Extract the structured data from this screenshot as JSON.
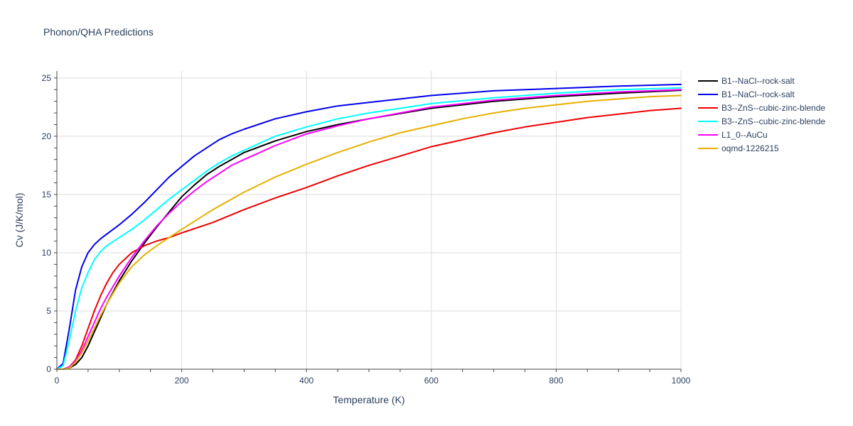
{
  "chart_data": {
    "type": "line",
    "title": "Phonon/QHA Predictions",
    "xlabel": "Temperature (K)",
    "ylabel": "Cv (J/K/mol)",
    "xlim": [
      0,
      1000
    ],
    "ylim": [
      0,
      25.6
    ],
    "xticks": [
      0,
      200,
      400,
      600,
      800,
      1000
    ],
    "yticks": [
      0,
      5,
      10,
      15,
      20,
      25
    ],
    "grid": true,
    "legend_position": "right",
    "series": [
      {
        "name": "B1--NaCl--rock-salt",
        "color": "#000000",
        "points": [
          [
            0,
            0
          ],
          [
            10,
            0
          ],
          [
            20,
            0.1
          ],
          [
            30,
            0.4
          ],
          [
            40,
            1.0
          ],
          [
            50,
            2.0
          ],
          [
            60,
            3.2
          ],
          [
            70,
            4.4
          ],
          [
            80,
            5.6
          ],
          [
            90,
            6.6
          ],
          [
            100,
            7.6
          ],
          [
            120,
            9.3
          ],
          [
            140,
            10.8
          ],
          [
            160,
            12.2
          ],
          [
            180,
            13.5
          ],
          [
            200,
            14.8
          ],
          [
            220,
            15.8
          ],
          [
            240,
            16.7
          ],
          [
            260,
            17.4
          ],
          [
            280,
            18.0
          ],
          [
            300,
            18.6
          ],
          [
            350,
            19.6
          ],
          [
            400,
            20.4
          ],
          [
            450,
            21.0
          ],
          [
            500,
            21.5
          ],
          [
            600,
            22.4
          ],
          [
            700,
            23.0
          ],
          [
            800,
            23.4
          ],
          [
            900,
            23.7
          ],
          [
            1000,
            23.95
          ]
        ]
      },
      {
        "name": "B1--NaCl--rock-salt",
        "color": "#0000ee",
        "points": [
          [
            0,
            0
          ],
          [
            10,
            0.5
          ],
          [
            20,
            3.5
          ],
          [
            30,
            6.8
          ],
          [
            40,
            8.8
          ],
          [
            50,
            10.0
          ],
          [
            60,
            10.7
          ],
          [
            70,
            11.2
          ],
          [
            80,
            11.6
          ],
          [
            100,
            12.4
          ],
          [
            120,
            13.3
          ],
          [
            140,
            14.3
          ],
          [
            160,
            15.4
          ],
          [
            180,
            16.5
          ],
          [
            200,
            17.4
          ],
          [
            220,
            18.3
          ],
          [
            240,
            19.0
          ],
          [
            260,
            19.7
          ],
          [
            280,
            20.2
          ],
          [
            300,
            20.6
          ],
          [
            350,
            21.5
          ],
          [
            400,
            22.1
          ],
          [
            450,
            22.6
          ],
          [
            500,
            22.9
          ],
          [
            600,
            23.5
          ],
          [
            700,
            23.9
          ],
          [
            800,
            24.1
          ],
          [
            900,
            24.3
          ],
          [
            1000,
            24.45
          ]
        ]
      },
      {
        "name": "B3--ZnS--cubic-zinc-blende",
        "color": "#ee0000",
        "points": [
          [
            0,
            0
          ],
          [
            10,
            0
          ],
          [
            20,
            0.2
          ],
          [
            30,
            0.8
          ],
          [
            40,
            2.0
          ],
          [
            50,
            3.5
          ],
          [
            60,
            5.0
          ],
          [
            70,
            6.3
          ],
          [
            80,
            7.4
          ],
          [
            90,
            8.3
          ],
          [
            100,
            9.0
          ],
          [
            120,
            10.0
          ],
          [
            140,
            10.6
          ],
          [
            160,
            11.0
          ],
          [
            180,
            11.3
          ],
          [
            200,
            11.7
          ],
          [
            250,
            12.6
          ],
          [
            300,
            13.7
          ],
          [
            350,
            14.7
          ],
          [
            400,
            15.6
          ],
          [
            450,
            16.6
          ],
          [
            500,
            17.5
          ],
          [
            550,
            18.3
          ],
          [
            600,
            19.1
          ],
          [
            650,
            19.7
          ],
          [
            700,
            20.3
          ],
          [
            750,
            20.8
          ],
          [
            800,
            21.2
          ],
          [
            850,
            21.6
          ],
          [
            900,
            21.9
          ],
          [
            950,
            22.2
          ],
          [
            1000,
            22.4
          ]
        ]
      },
      {
        "name": "B3--ZnS--cubic-zinc-blende",
        "color": "#00ffff",
        "points": [
          [
            0,
            0
          ],
          [
            10,
            0.3
          ],
          [
            20,
            2.5
          ],
          [
            30,
            5.0
          ],
          [
            40,
            7.0
          ],
          [
            50,
            8.3
          ],
          [
            60,
            9.4
          ],
          [
            70,
            10.1
          ],
          [
            80,
            10.6
          ],
          [
            100,
            11.3
          ],
          [
            120,
            12.0
          ],
          [
            140,
            12.8
          ],
          [
            160,
            13.7
          ],
          [
            180,
            14.6
          ],
          [
            200,
            15.4
          ],
          [
            220,
            16.2
          ],
          [
            240,
            17.0
          ],
          [
            260,
            17.7
          ],
          [
            280,
            18.3
          ],
          [
            300,
            18.8
          ],
          [
            350,
            20.0
          ],
          [
            400,
            20.8
          ],
          [
            450,
            21.5
          ],
          [
            500,
            22.0
          ],
          [
            600,
            22.8
          ],
          [
            700,
            23.3
          ],
          [
            800,
            23.7
          ],
          [
            900,
            24.0
          ],
          [
            1000,
            24.15
          ]
        ]
      },
      {
        "name": "L1_0--AuCu",
        "color": "#ff00ff",
        "points": [
          [
            0,
            0
          ],
          [
            10,
            0
          ],
          [
            20,
            0.2
          ],
          [
            30,
            0.7
          ],
          [
            40,
            1.6
          ],
          [
            50,
            2.8
          ],
          [
            60,
            4.0
          ],
          [
            70,
            5.2
          ],
          [
            80,
            6.2
          ],
          [
            90,
            7.1
          ],
          [
            100,
            8.0
          ],
          [
            120,
            9.6
          ],
          [
            140,
            11.0
          ],
          [
            160,
            12.3
          ],
          [
            180,
            13.4
          ],
          [
            200,
            14.4
          ],
          [
            220,
            15.3
          ],
          [
            240,
            16.1
          ],
          [
            260,
            16.8
          ],
          [
            280,
            17.5
          ],
          [
            300,
            18.0
          ],
          [
            350,
            19.2
          ],
          [
            400,
            20.2
          ],
          [
            450,
            20.9
          ],
          [
            500,
            21.5
          ],
          [
            600,
            22.5
          ],
          [
            700,
            23.1
          ],
          [
            800,
            23.5
          ],
          [
            900,
            23.8
          ],
          [
            1000,
            24.0
          ]
        ]
      },
      {
        "name": "oqmd-1226215",
        "color": "#e6b000",
        "points": [
          [
            0,
            0
          ],
          [
            10,
            0
          ],
          [
            20,
            0.1
          ],
          [
            30,
            0.6
          ],
          [
            40,
            1.4
          ],
          [
            50,
            2.4
          ],
          [
            60,
            3.5
          ],
          [
            70,
            4.6
          ],
          [
            80,
            5.6
          ],
          [
            100,
            7.4
          ],
          [
            120,
            8.8
          ],
          [
            140,
            9.8
          ],
          [
            160,
            10.6
          ],
          [
            180,
            11.3
          ],
          [
            200,
            12.0
          ],
          [
            250,
            13.7
          ],
          [
            300,
            15.2
          ],
          [
            350,
            16.5
          ],
          [
            400,
            17.6
          ],
          [
            450,
            18.6
          ],
          [
            500,
            19.5
          ],
          [
            550,
            20.3
          ],
          [
            600,
            20.9
          ],
          [
            650,
            21.5
          ],
          [
            700,
            22.0
          ],
          [
            750,
            22.4
          ],
          [
            800,
            22.7
          ],
          [
            850,
            23.0
          ],
          [
            900,
            23.2
          ],
          [
            950,
            23.4
          ],
          [
            1000,
            23.5
          ]
        ]
      }
    ]
  }
}
